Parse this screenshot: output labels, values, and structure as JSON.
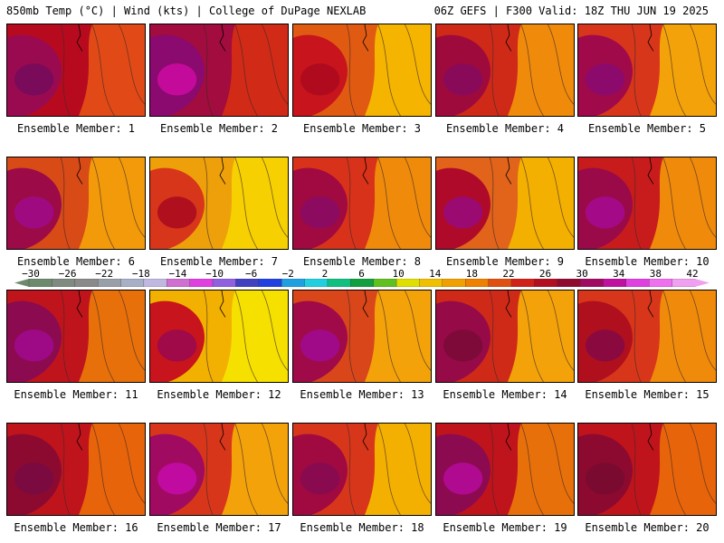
{
  "header": {
    "left": "850mb Temp (°C) | Wind (kts) | College of DuPage NEXLAB",
    "right": "06Z GEFS | F300 Valid: 18Z THU JUN 19 2025"
  },
  "panels": [
    {
      "label": "Ensemble Member: 1",
      "c": "#b80a1e",
      "accent": "#9a0a50",
      "hot": "#7a0a5a",
      "warm": "#e14a16"
    },
    {
      "label": "Ensemble Member: 2",
      "c": "#a20c3e",
      "accent": "#8a0a70",
      "hot": "#c40a9a",
      "warm": "#d12a16"
    },
    {
      "label": "Ensemble Member: 3",
      "c": "#e15a12",
      "accent": "#c8141c",
      "hot": "#b00a1e",
      "warm": "#f4b400"
    },
    {
      "label": "Ensemble Member: 4",
      "c": "#cf2a18",
      "accent": "#9e0a3c",
      "hot": "#8a0a5a",
      "warm": "#f08a0a"
    },
    {
      "label": "Ensemble Member: 5",
      "c": "#d8361a",
      "accent": "#a00a4a",
      "hot": "#8c0a6c",
      "warm": "#f3a20a"
    },
    {
      "label": "Ensemble Member: 6",
      "c": "#d84a16",
      "accent": "#9c0a48",
      "hot": "#a00a80",
      "warm": "#f39a0a"
    },
    {
      "label": "Ensemble Member: 7",
      "c": "#eea00a",
      "accent": "#d8361a",
      "hot": "#b0101e",
      "warm": "#f6d000"
    },
    {
      "label": "Ensemble Member: 8",
      "c": "#d8321a",
      "accent": "#a00a40",
      "hot": "#8c0a60",
      "warm": "#f08a0a"
    },
    {
      "label": "Ensemble Member: 9",
      "c": "#e1641a",
      "accent": "#b00a2a",
      "hot": "#9a0a70",
      "warm": "#f4b000"
    },
    {
      "label": "Ensemble Member: 10",
      "c": "#c81c1c",
      "accent": "#9a0a48",
      "hot": "#a40a88",
      "warm": "#f08a0a"
    },
    {
      "label": "Ensemble Member: 11",
      "c": "#c0141c",
      "accent": "#8c0a50",
      "hot": "#9e0a86",
      "warm": "#e8700a"
    },
    {
      "label": "Ensemble Member: 12",
      "c": "#f2b000",
      "accent": "#c8141c",
      "hot": "#a00a48",
      "warm": "#f6e000"
    },
    {
      "label": "Ensemble Member: 13",
      "c": "#d8461a",
      "accent": "#a00a48",
      "hot": "#a00a88",
      "warm": "#f3a20a"
    },
    {
      "label": "Ensemble Member: 14",
      "c": "#cf2a18",
      "accent": "#960a48",
      "hot": "#7e0a3a",
      "warm": "#f3a20a"
    },
    {
      "label": "Ensemble Member: 15",
      "c": "#d8361a",
      "accent": "#b0101e",
      "hot": "#8a0a40",
      "warm": "#f08a0a"
    },
    {
      "label": "Ensemble Member: 16",
      "c": "#c0141c",
      "accent": "#8c0a30",
      "hot": "#7a0a40",
      "warm": "#e8640a"
    },
    {
      "label": "Ensemble Member: 17",
      "c": "#d8361a",
      "accent": "#a00a60",
      "hot": "#c00aa0",
      "warm": "#f3a20a"
    },
    {
      "label": "Ensemble Member: 18",
      "c": "#d8361a",
      "accent": "#a00a40",
      "hot": "#8a0a50",
      "warm": "#f4b000"
    },
    {
      "label": "Ensemble Member: 19",
      "c": "#c0141c",
      "accent": "#8c0a50",
      "hot": "#b00a90",
      "warm": "#e8700a"
    },
    {
      "label": "Ensemble Member: 20",
      "c": "#c0141c",
      "accent": "#8c0a30",
      "hot": "#7a0a30",
      "warm": "#e8640a"
    }
  ],
  "colorbar": {
    "ticks": [
      "−30",
      "−26",
      "−22",
      "−18",
      "−14",
      "−10",
      "−6",
      "−2",
      "2",
      "6",
      "10",
      "14",
      "18",
      "22",
      "26",
      "30",
      "34",
      "38",
      "42"
    ],
    "colors": [
      "#6e8a6e",
      "#808a80",
      "#8a8a8a",
      "#9aa0a8",
      "#a8b0c8",
      "#c0b8e0",
      "#d070d0",
      "#e040e0",
      "#9060e0",
      "#4040c0",
      "#2040e0",
      "#20a0e0",
      "#20d0e0",
      "#10c080",
      "#10a040",
      "#60c020",
      "#e0e000",
      "#f0c000",
      "#f0a000",
      "#f08000",
      "#e05010",
      "#d02018",
      "#b01020",
      "#900a30",
      "#a00a60",
      "#c010a0",
      "#e040e0",
      "#f070f0",
      "#f0a0f0"
    ]
  }
}
